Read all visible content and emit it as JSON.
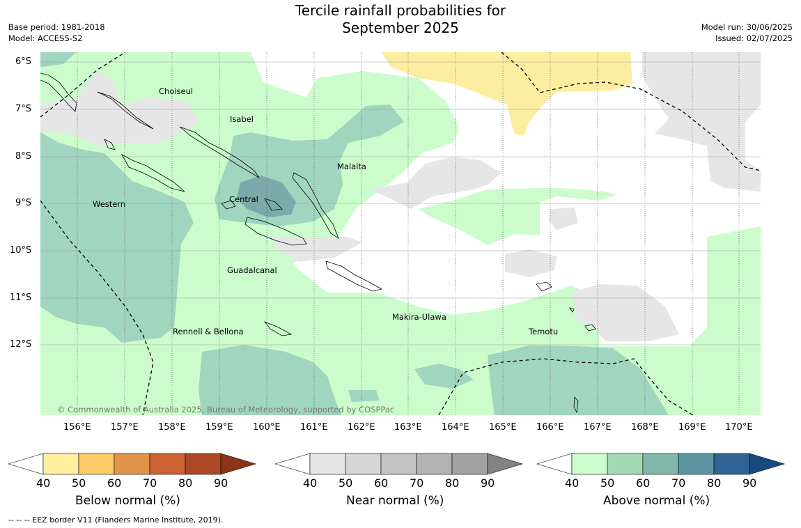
{
  "title_line1": "Tercile rainfall probabilities for",
  "title_line2": "September 2025",
  "base_period": "Base period: 1981-2018",
  "model": "Model: ACCESS-S2",
  "model_run": "Model run: 30/06/2025",
  "issued": "Issued: 02/07/2025",
  "copyright": "© Commonwealth of Australia 2025, Bureau of Meteorology, supported by COSPPac",
  "lat_labels": [
    "6°S",
    "7°S",
    "8°S",
    "9°S",
    "10°S",
    "11°S",
    "12°S"
  ],
  "lon_labels": [
    "156°E",
    "157°E",
    "158°E",
    "159°E",
    "160°E",
    "161°E",
    "162°E",
    "163°E",
    "164°E",
    "165°E",
    "166°E",
    "167°E",
    "168°E",
    "169°E",
    "170°E"
  ],
  "regions": {
    "choiseul": "Choiseul",
    "isabel": "Isabel",
    "malaita": "Malaita",
    "western": "Western",
    "central": "Central",
    "guadalcanal": "Guadalcanal",
    "makira": "Makira-Ulawa",
    "rennell": "Rennell & Bellona",
    "temotu": "Temotu"
  },
  "colorbars": {
    "below": {
      "title": "Below normal (%)",
      "ticks": [
        "40",
        "50",
        "60",
        "70",
        "80",
        "90"
      ],
      "colors": [
        "#fff0a0",
        "#fdcb67",
        "#e0944a",
        "#cc6234",
        "#ad4826",
        "#8c3318"
      ]
    },
    "near": {
      "title": "Near normal (%)",
      "ticks": [
        "40",
        "50",
        "60",
        "70",
        "80",
        "90"
      ],
      "colors": [
        "#e6e6e6",
        "#d6d6d6",
        "#c4c4c4",
        "#b2b2b2",
        "#a2a2a2",
        "#838383"
      ]
    },
    "above": {
      "title": "Above normal (%)",
      "ticks": [
        "40",
        "50",
        "60",
        "70",
        "80",
        "90"
      ],
      "colors": [
        "#ccfccb",
        "#a4d8b7",
        "#81b8ab",
        "#5c96a3",
        "#2e6496",
        "#174a7e"
      ]
    }
  },
  "footnote": "--  --  -- EEZ border V11 (Flanders Marine Institute, 2019).",
  "colors": {
    "below_40": "#fdeda0",
    "near_40": "#e6e6e6",
    "above_40": "#ccfccb",
    "above_50": "#a0d5bf",
    "above_60": "#7aaaa9"
  }
}
